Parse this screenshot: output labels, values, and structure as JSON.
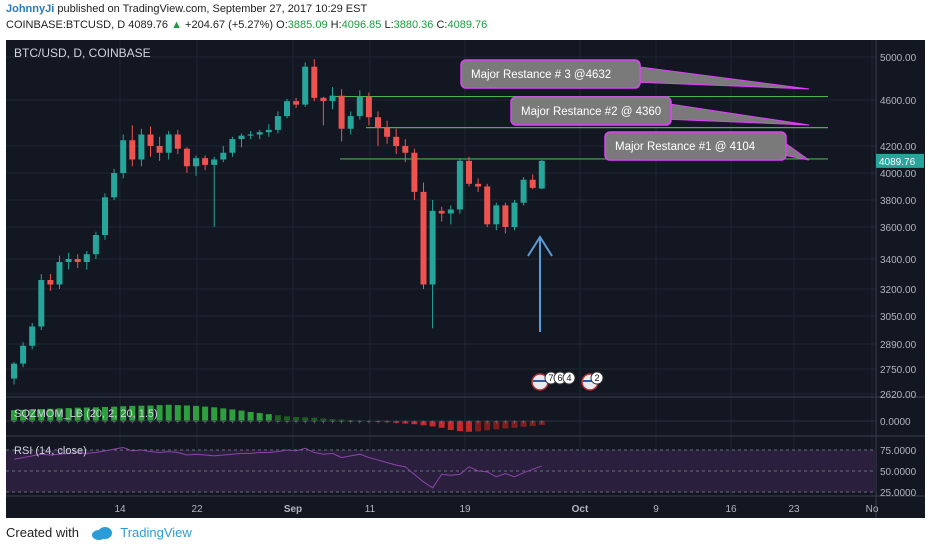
{
  "header": {
    "author": "JohnnyJi",
    "published_text": "published on TradingView.com, September 27, 2017 10:29 EST",
    "symbol": "COINBASE:BTCUSD, D",
    "last": "4089.76",
    "change_arrow": "▲",
    "change": "+204.67 (+5.27%)",
    "o_label": "O:",
    "o_value": "3885.09",
    "h_label": "H:",
    "h_value": "4096.85",
    "l_label": "L:",
    "l_value": "3880.36",
    "c_label": "C:",
    "c_value": "4089.76"
  },
  "chart": {
    "title": "BTC/USD, D, COINBASE",
    "indicator1_label": "SQZMOM_LB (20, 2, 20, 1.5)",
    "indicator2_label": "RSI (14, close)",
    "price_ticks": [
      "5000.00",
      "4600.00",
      "4200.00",
      "4000.00",
      "3800.00",
      "3600.00",
      "3400.00",
      "3200.00",
      "3050.00",
      "2890.00",
      "2750.00",
      "2620.00"
    ],
    "sqz_ticks": [
      "0.0000"
    ],
    "rsi_ticks": [
      "75.0000",
      "50.0000",
      "25.0000"
    ],
    "x_ticks": [
      "14",
      "22",
      "Sep",
      "11",
      "19",
      "Oct",
      "9",
      "16",
      "23",
      "No"
    ],
    "current_price_tag": "4089.76",
    "event_badges": [
      "7",
      "6",
      "4",
      "2"
    ],
    "annotations": [
      {
        "text": "Major Restance # 3 @4632"
      },
      {
        "text": "Major Restance #2 @ 4360"
      },
      {
        "text": "Major Restance #1  @ 4104"
      }
    ],
    "colors": {
      "background": "#131722",
      "up": "#26a69a",
      "down": "#ef5350",
      "resistance": "#4caf50",
      "arrow": "#5b9bd5",
      "callout": "#7a7a7a",
      "callout_border": "#e040fb"
    }
  },
  "chart_data": {
    "type": "candlestick",
    "title": "BTC/USD, D, COINBASE",
    "x_label": "",
    "y_label": "",
    "resistance_levels": [
      4632,
      4360,
      4104
    ],
    "candles": [
      {
        "o": 2700,
        "h": 2790,
        "l": 2670,
        "c": 2780
      },
      {
        "o": 2780,
        "h": 2900,
        "l": 2760,
        "c": 2880
      },
      {
        "o": 2880,
        "h": 3010,
        "l": 2860,
        "c": 2990
      },
      {
        "o": 2990,
        "h": 3300,
        "l": 2970,
        "c": 3260
      },
      {
        "o": 3260,
        "h": 3300,
        "l": 3190,
        "c": 3230
      },
      {
        "o": 3230,
        "h": 3420,
        "l": 3200,
        "c": 3380
      },
      {
        "o": 3380,
        "h": 3440,
        "l": 3330,
        "c": 3400
      },
      {
        "o": 3400,
        "h": 3430,
        "l": 3340,
        "c": 3380
      },
      {
        "o": 3380,
        "h": 3450,
        "l": 3330,
        "c": 3430
      },
      {
        "o": 3430,
        "h": 3570,
        "l": 3400,
        "c": 3550
      },
      {
        "o": 3550,
        "h": 3850,
        "l": 3520,
        "c": 3820
      },
      {
        "o": 3820,
        "h": 4030,
        "l": 3800,
        "c": 4000
      },
      {
        "o": 4000,
        "h": 4300,
        "l": 3960,
        "c": 4250
      },
      {
        "o": 4250,
        "h": 4380,
        "l": 4050,
        "c": 4100
      },
      {
        "o": 4100,
        "h": 4350,
        "l": 4050,
        "c": 4300
      },
      {
        "o": 4300,
        "h": 4370,
        "l": 4120,
        "c": 4200
      },
      {
        "o": 4200,
        "h": 4280,
        "l": 4090,
        "c": 4150
      },
      {
        "o": 4150,
        "h": 4330,
        "l": 4100,
        "c": 4300
      },
      {
        "o": 4300,
        "h": 4340,
        "l": 4140,
        "c": 4180
      },
      {
        "o": 4180,
        "h": 4190,
        "l": 4000,
        "c": 4050
      },
      {
        "o": 4050,
        "h": 4130,
        "l": 3980,
        "c": 4110
      },
      {
        "o": 4110,
        "h": 4130,
        "l": 4020,
        "c": 4060
      },
      {
        "o": 4060,
        "h": 4120,
        "l": 3600,
        "c": 4100
      },
      {
        "o": 4100,
        "h": 4200,
        "l": 4080,
        "c": 4150
      },
      {
        "o": 4150,
        "h": 4280,
        "l": 4120,
        "c": 4260
      },
      {
        "o": 4260,
        "h": 4310,
        "l": 4190,
        "c": 4290
      },
      {
        "o": 4290,
        "h": 4330,
        "l": 4260,
        "c": 4300
      },
      {
        "o": 4300,
        "h": 4340,
        "l": 4260,
        "c": 4320
      },
      {
        "o": 4320,
        "h": 4390,
        "l": 4280,
        "c": 4340
      },
      {
        "o": 4340,
        "h": 4500,
        "l": 4310,
        "c": 4460
      },
      {
        "o": 4460,
        "h": 4610,
        "l": 4440,
        "c": 4590
      },
      {
        "o": 4590,
        "h": 4620,
        "l": 4530,
        "c": 4560
      },
      {
        "o": 4560,
        "h": 4950,
        "l": 4540,
        "c": 4910
      },
      {
        "o": 4910,
        "h": 4980,
        "l": 4590,
        "c": 4620
      },
      {
        "o": 4620,
        "h": 4630,
        "l": 4380,
        "c": 4590
      },
      {
        "o": 4590,
        "h": 4720,
        "l": 4520,
        "c": 4640
      },
      {
        "o": 4640,
        "h": 4700,
        "l": 4240,
        "c": 4350
      },
      {
        "o": 4350,
        "h": 4500,
        "l": 4300,
        "c": 4460
      },
      {
        "o": 4460,
        "h": 4690,
        "l": 4430,
        "c": 4630
      },
      {
        "o": 4630,
        "h": 4670,
        "l": 4380,
        "c": 4450
      },
      {
        "o": 4450,
        "h": 4500,
        "l": 4200,
        "c": 4360
      },
      {
        "o": 4360,
        "h": 4420,
        "l": 4220,
        "c": 4280
      },
      {
        "o": 4280,
        "h": 4350,
        "l": 4140,
        "c": 4200
      },
      {
        "o": 4200,
        "h": 4260,
        "l": 4080,
        "c": 4150
      },
      {
        "o": 4150,
        "h": 4180,
        "l": 3800,
        "c": 3860
      },
      {
        "o": 3860,
        "h": 3930,
        "l": 3200,
        "c": 3230
      },
      {
        "o": 3230,
        "h": 3800,
        "l": 2980,
        "c": 3720
      },
      {
        "o": 3720,
        "h": 3750,
        "l": 3640,
        "c": 3700
      },
      {
        "o": 3700,
        "h": 3760,
        "l": 3620,
        "c": 3730
      },
      {
        "o": 3730,
        "h": 4110,
        "l": 3700,
        "c": 4090
      },
      {
        "o": 4090,
        "h": 4120,
        "l": 3900,
        "c": 3920
      },
      {
        "o": 3920,
        "h": 3960,
        "l": 3860,
        "c": 3900
      },
      {
        "o": 3900,
        "h": 3920,
        "l": 3600,
        "c": 3620
      },
      {
        "o": 3620,
        "h": 3780,
        "l": 3580,
        "c": 3760
      },
      {
        "o": 3760,
        "h": 3780,
        "l": 3560,
        "c": 3600
      },
      {
        "o": 3600,
        "h": 3800,
        "l": 3580,
        "c": 3780
      },
      {
        "o": 3780,
        "h": 3970,
        "l": 3760,
        "c": 3950
      },
      {
        "o": 3950,
        "h": 3990,
        "l": 3880,
        "c": 3890
      },
      {
        "o": 3885.09,
        "h": 4096.85,
        "l": 3880.36,
        "c": 4089.76
      }
    ],
    "squeeze_momentum": [
      0.6,
      0.62,
      0.64,
      0.66,
      0.68,
      0.7,
      0.72,
      0.74,
      0.75,
      0.76,
      0.78,
      0.8,
      0.82,
      0.84,
      0.85,
      0.86,
      0.88,
      0.9,
      0.88,
      0.86,
      0.84,
      0.8,
      0.76,
      0.7,
      0.64,
      0.58,
      0.5,
      0.44,
      0.38,
      0.32,
      0.26,
      0.22,
      0.2,
      0.18,
      0.14,
      0.1,
      0.08,
      0.06,
      0.04,
      0.02,
      -0.02,
      -0.06,
      -0.1,
      -0.14,
      -0.18,
      -0.24,
      -0.3,
      -0.38,
      -0.5,
      -0.56,
      -0.6,
      -0.58,
      -0.52,
      -0.46,
      -0.42,
      -0.38,
      -0.32,
      -0.28,
      -0.22
    ],
    "rsi": [
      64,
      66,
      68,
      70,
      69,
      70,
      71,
      72,
      71,
      72,
      74,
      76,
      78,
      74,
      75,
      73,
      72,
      73,
      72,
      69,
      70,
      69,
      68,
      69,
      70,
      71,
      71,
      72,
      72,
      73,
      75,
      74,
      77,
      72,
      70,
      71,
      66,
      68,
      70,
      66,
      63,
      60,
      57,
      55,
      46,
      37,
      30,
      46,
      45,
      46,
      55,
      50,
      49,
      43,
      47,
      43,
      48,
      52,
      56
    ]
  }
}
